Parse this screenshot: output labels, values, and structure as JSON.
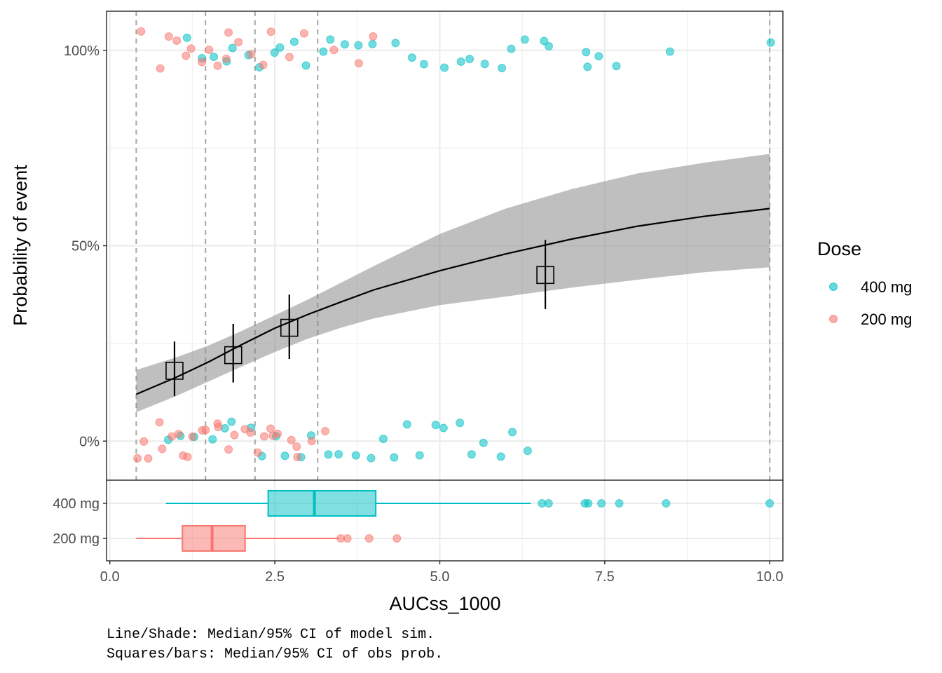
{
  "chart_data": {
    "type": "scatter",
    "xlabel": "AUCss_1000",
    "ylabel": "Probability of event",
    "xlim": [
      -0.05,
      10.2
    ],
    "ylim": [
      -0.1,
      1.1
    ],
    "x_ticks": [
      0.0,
      2.5,
      5.0,
      7.5,
      10.0
    ],
    "x_tick_labels": [
      "0.0",
      "2.5",
      "5.0",
      "7.5",
      "10.0"
    ],
    "y_ticks": [
      0,
      0.5,
      1
    ],
    "y_tick_labels": [
      "0%",
      "50%",
      "100%"
    ],
    "grid": true,
    "legend_position": "right",
    "legend": {
      "title": "Dose",
      "entries": [
        {
          "label": "400 mg",
          "color": "#00BFC4"
        },
        {
          "label": "200 mg",
          "color": "#F8766D"
        }
      ]
    },
    "colors": {
      "400 mg": "#00BFC4",
      "200 mg": "#F8766D"
    },
    "quantile_breaks": [
      0.4,
      1.45,
      2.2,
      3.15,
      10.0
    ],
    "model_median": {
      "x": [
        0.4,
        1.0,
        1.5,
        2.0,
        2.5,
        3.0,
        3.5,
        4.0,
        5.0,
        6.0,
        7.0,
        8.0,
        9.0,
        10.0
      ],
      "y": [
        0.12,
        0.163,
        0.203,
        0.247,
        0.289,
        0.324,
        0.356,
        0.387,
        0.436,
        0.479,
        0.517,
        0.55,
        0.575,
        0.595
      ]
    },
    "model_ci": {
      "x": [
        0.4,
        1.0,
        1.5,
        2.0,
        2.5,
        3.0,
        3.5,
        4.0,
        5.0,
        6.0,
        7.0,
        8.0,
        9.0,
        10.0
      ],
      "lower": [
        0.074,
        0.115,
        0.153,
        0.191,
        0.228,
        0.262,
        0.29,
        0.314,
        0.348,
        0.37,
        0.393,
        0.413,
        0.432,
        0.445
      ],
      "upper": [
        0.182,
        0.214,
        0.245,
        0.282,
        0.322,
        0.362,
        0.405,
        0.448,
        0.53,
        0.595,
        0.645,
        0.685,
        0.712,
        0.735
      ]
    },
    "observed_prob": [
      {
        "x": 0.98,
        "y": 0.18,
        "lower": 0.115,
        "upper": 0.255
      },
      {
        "x": 1.87,
        "y": 0.22,
        "lower": 0.15,
        "upper": 0.3
      },
      {
        "x": 2.72,
        "y": 0.29,
        "lower": 0.21,
        "upper": 0.375
      },
      {
        "x": 6.6,
        "y": 0.425,
        "lower": 0.338,
        "upper": 0.515
      }
    ],
    "series": [
      {
        "name": "400 mg",
        "event_1_x": [
          1.2,
          1.4,
          1.55,
          1.75,
          1.9,
          2.1,
          2.3,
          2.45,
          2.6,
          2.8,
          3.0,
          3.2,
          3.4,
          3.6,
          3.8,
          4.0,
          4.3,
          4.55,
          4.8,
          5.1,
          5.3,
          5.5,
          5.7,
          5.9,
          6.1,
          6.3,
          6.55,
          6.65,
          7.2,
          7.25,
          7.45,
          7.72,
          8.43,
          10.0
        ],
        "event_0_x": [
          0.9,
          1.1,
          1.3,
          1.5,
          1.7,
          1.9,
          2.1,
          2.3,
          2.5,
          2.7,
          2.9,
          3.1,
          3.3,
          3.5,
          3.7,
          3.9,
          4.1,
          4.3,
          4.5,
          4.7,
          4.9,
          5.1,
          5.3,
          5.5,
          5.7,
          5.9,
          6.07,
          6.28
        ],
        "box": {
          "min": 0.85,
          "q1": 2.4,
          "median": 3.1,
          "q3": 4.03,
          "max": 6.38,
          "outliers": [
            6.55,
            6.65,
            7.2,
            7.25,
            7.45,
            7.72,
            8.43,
            10.0
          ]
        }
      },
      {
        "name": "200 mg",
        "event_1_x": [
          0.5,
          0.75,
          0.95,
          1.05,
          1.15,
          1.25,
          1.35,
          1.45,
          1.6,
          1.75,
          1.85,
          1.95,
          2.1,
          2.3,
          2.5,
          2.7,
          3.0,
          3.35,
          3.75,
          3.93
        ],
        "event_0_x": [
          0.4,
          0.5,
          0.6,
          0.7,
          0.8,
          0.9,
          1.0,
          1.1,
          1.2,
          1.3,
          1.4,
          1.5,
          1.6,
          1.7,
          1.8,
          1.9,
          2.0,
          2.1,
          2.2,
          2.3,
          2.4,
          2.5,
          2.6,
          2.7,
          2.8,
          2.9,
          3.0,
          3.3
        ],
        "box": {
          "min": 0.4,
          "q1": 1.1,
          "median": 1.55,
          "q3": 2.05,
          "max": 3.48,
          "outliers": [
            3.5,
            3.6,
            3.93,
            4.35
          ]
        }
      }
    ],
    "box_categories": [
      "400 mg",
      "200 mg"
    ]
  },
  "caption": {
    "line1": "Line/Shade: Median/95% CI of model sim.",
    "line2": "Squares/bars: Median/95% CI of obs prob."
  }
}
